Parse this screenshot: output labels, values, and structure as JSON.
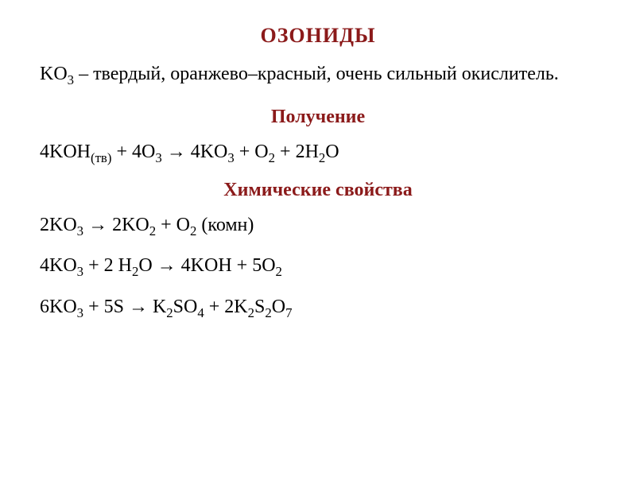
{
  "title": "ОЗОНИДЫ",
  "description_html": "KO<sub>3</sub> – твердый, оранжево–красный, очень сильный окислитель.",
  "sections": {
    "preparation": {
      "header": "Получение",
      "equations": [
        "4KOH<sub>(тв)</sub> + 4O<sub>3</sub> → 4KO<sub>3</sub> + O<sub>2</sub> + 2H<sub>2</sub>O"
      ]
    },
    "properties": {
      "header": "Химические свойства",
      "equations": [
        "2KO<sub>3</sub> →  2KO<sub>2</sub> + O<sub>2</sub>   (комн)",
        "4KO<sub>3</sub> + 2 H<sub>2</sub>O → 4KOH + 5O<sub>2</sub>",
        "6KO<sub>3</sub> + 5S → K<sub>2</sub>SO<sub>4</sub> + 2K<sub>2</sub>S<sub>2</sub>O<sub>7</sub>"
      ]
    }
  },
  "colors": {
    "title_color": "#8b1a1a",
    "text_color": "#000000",
    "background": "#ffffff"
  },
  "typography": {
    "title_fontsize": 26,
    "body_fontsize": 24,
    "font_family": "Times New Roman"
  }
}
